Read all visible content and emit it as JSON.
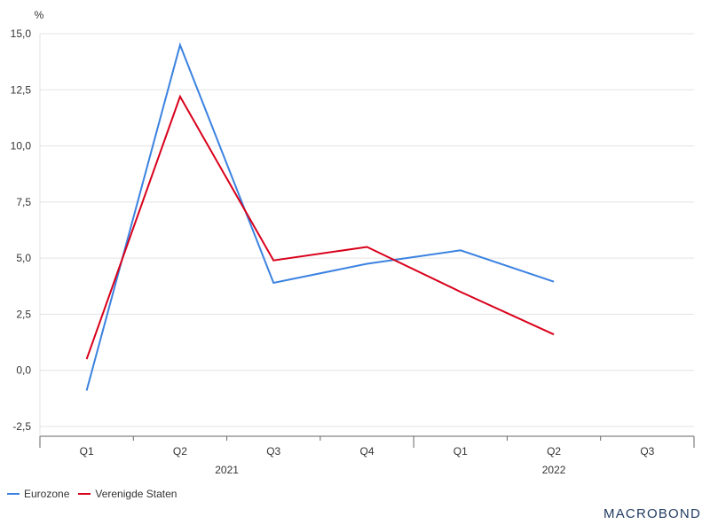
{
  "chart_data": {
    "type": "line",
    "y_unit": "%",
    "ylim": [
      -2.5,
      15.0
    ],
    "y_ticks": [
      "-2,5",
      "0,0",
      "2,5",
      "5,0",
      "7,5",
      "10,0",
      "12,5",
      "15,0"
    ],
    "y_tick_values": [
      -2.5,
      0,
      2.5,
      5,
      7.5,
      10,
      12.5,
      15
    ],
    "categories": [
      "Q1",
      "Q2",
      "Q3",
      "Q4",
      "Q1",
      "Q2",
      "Q3"
    ],
    "year_labels": [
      {
        "label": "2021",
        "span": [
          0,
          3
        ]
      },
      {
        "label": "2022",
        "span": [
          4,
          6
        ]
      }
    ],
    "grid": true,
    "legend_position": "bottom-left",
    "series": [
      {
        "name": "Eurozone",
        "color": "#3b82e0",
        "values": [
          -0.9,
          14.5,
          3.9,
          4.75,
          5.35,
          3.95,
          null
        ]
      },
      {
        "name": "Verenigde Staten",
        "color": "#d9001b",
        "values": [
          0.5,
          12.2,
          4.9,
          5.5,
          3.5,
          1.6,
          null
        ]
      }
    ]
  },
  "brand": "MACROBOND"
}
